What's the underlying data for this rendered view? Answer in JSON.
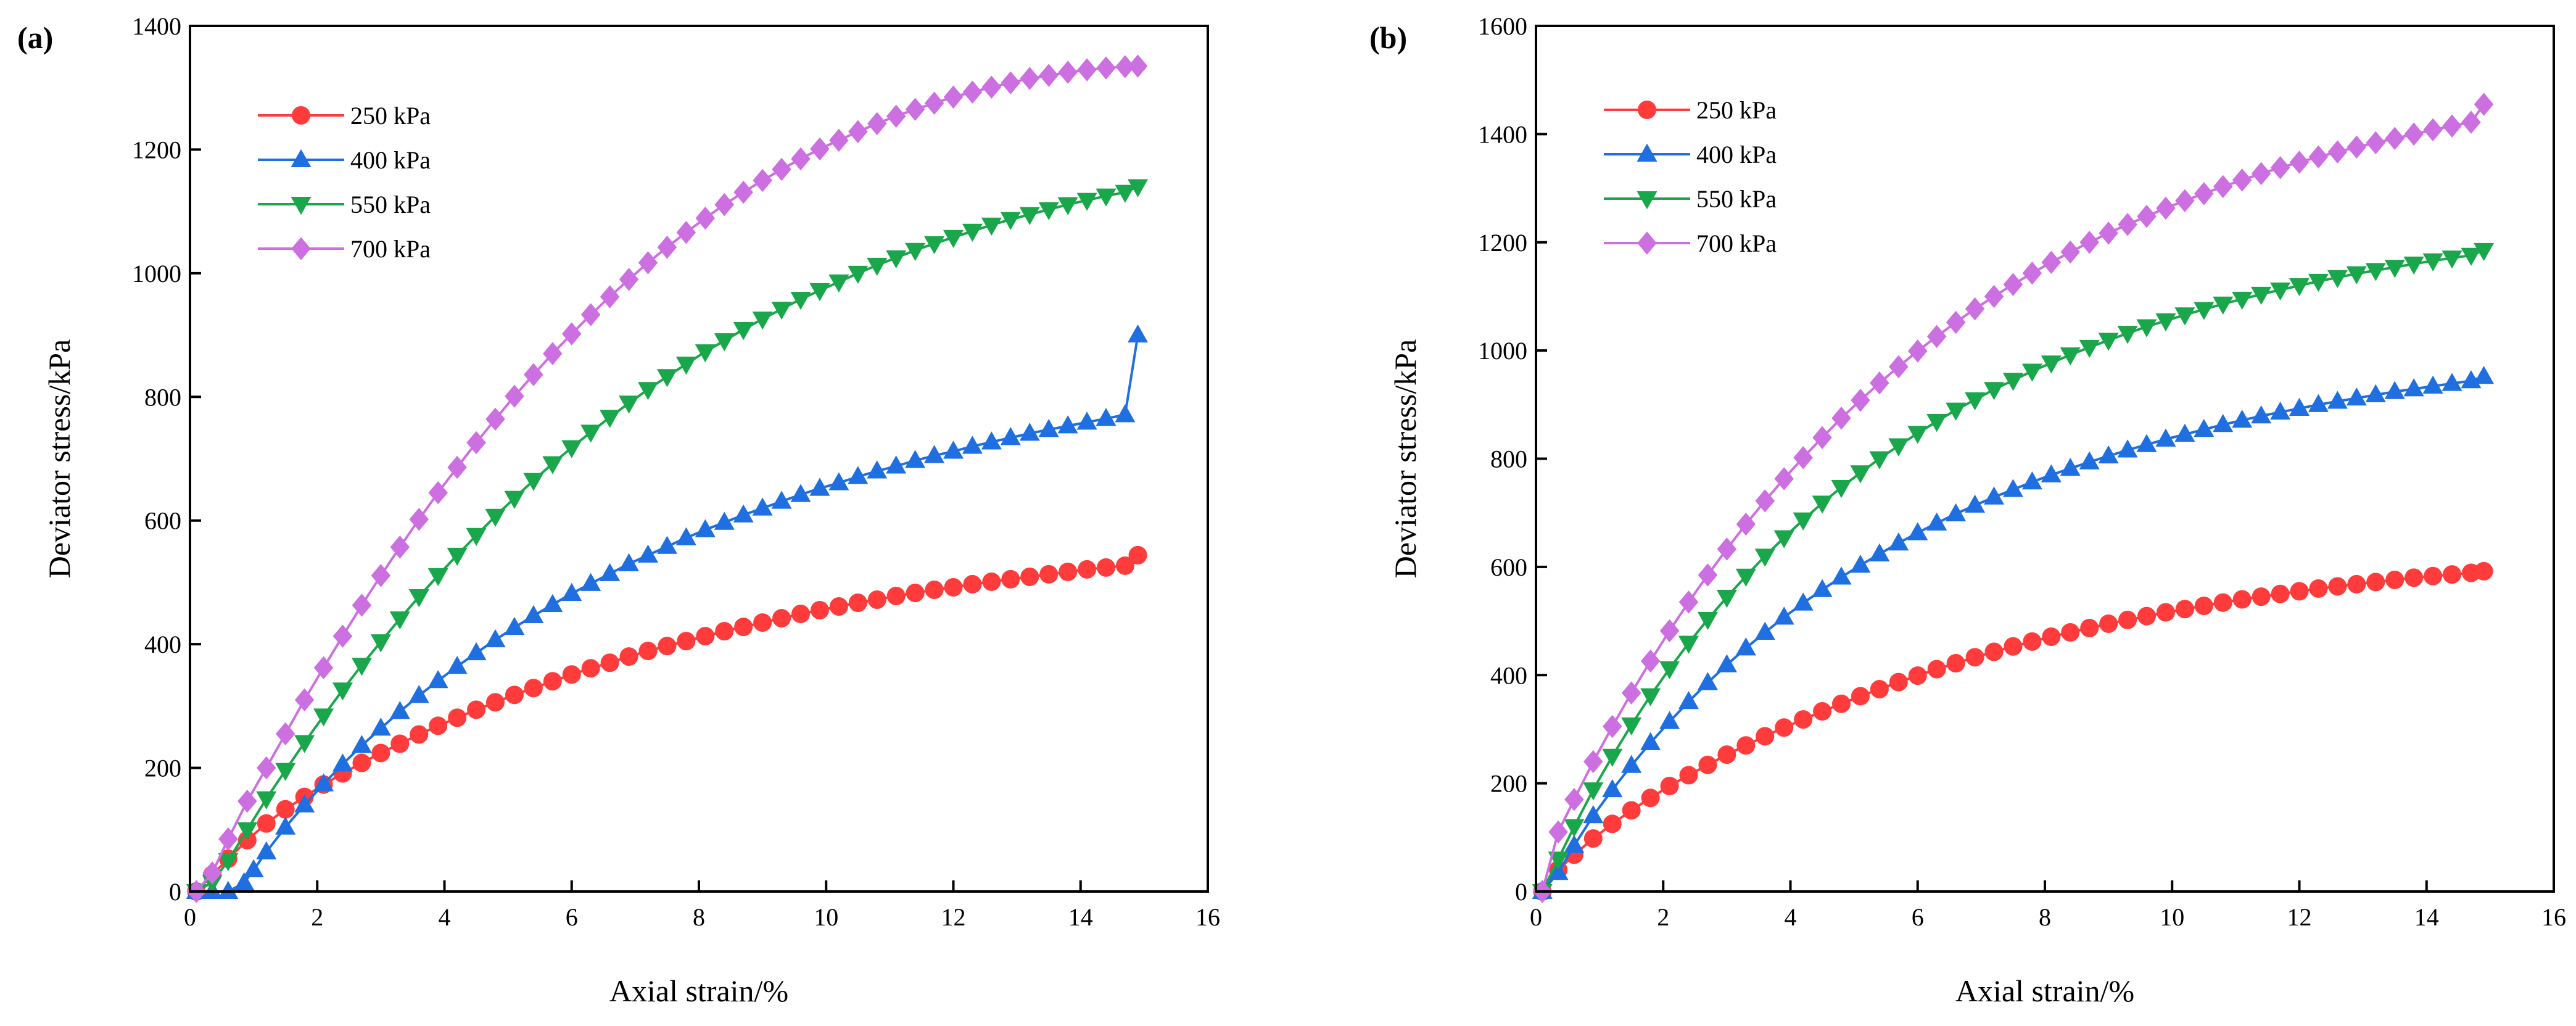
{
  "chart_data": [
    {
      "type": "line",
      "panel_label": "(a)",
      "xlabel": "Axial strain/%",
      "ylabel": "Deviator stress/kPa",
      "xlim": [
        0,
        16
      ],
      "ylim": [
        0,
        1400
      ],
      "xticks": [
        0,
        2,
        4,
        6,
        8,
        10,
        12,
        14,
        16
      ],
      "yticks": [
        0,
        200,
        400,
        600,
        800,
        1000,
        1200,
        1400
      ],
      "legend_position": "top-left",
      "series": [
        {
          "name": "250 kPa",
          "color": "#ff3b3b",
          "marker": "circle",
          "x": [
            0.1,
            0.35,
            0.6,
            0.9,
            1.2,
            1.5,
            1.8,
            2.1,
            2.4,
            2.7,
            3.0,
            3.3,
            3.6,
            3.9,
            4.2,
            4.5,
            4.8,
            5.1,
            5.4,
            5.7,
            6.0,
            6.3,
            6.6,
            6.9,
            7.2,
            7.5,
            7.8,
            8.1,
            8.4,
            8.7,
            9.0,
            9.3,
            9.6,
            9.9,
            10.2,
            10.5,
            10.8,
            11.1,
            11.4,
            11.7,
            12.0,
            12.3,
            12.6,
            12.9,
            13.2,
            13.5,
            13.8,
            14.1,
            14.4,
            14.7,
            14.9
          ],
          "y": [
            0,
            27,
            53,
            83,
            110,
            133,
            153,
            173,
            191,
            208,
            224,
            239,
            254,
            268,
            281,
            294,
            306,
            318,
            329,
            340,
            351,
            361,
            370,
            380,
            389,
            397,
            405,
            413,
            421,
            428,
            435,
            442,
            449,
            455,
            461,
            467,
            472,
            478,
            483,
            488,
            492,
            497,
            501,
            505,
            509,
            513,
            517,
            521,
            524,
            527,
            544
          ]
        },
        {
          "name": "400 kPa",
          "color": "#1f6fe0",
          "marker": "triangle-up",
          "x": [
            0.1,
            0.35,
            0.6,
            0.85,
            1.0,
            1.2,
            1.5,
            1.8,
            2.1,
            2.4,
            2.7,
            3.0,
            3.3,
            3.6,
            3.9,
            4.2,
            4.5,
            4.8,
            5.1,
            5.4,
            5.7,
            6.0,
            6.3,
            6.6,
            6.9,
            7.2,
            7.5,
            7.8,
            8.1,
            8.4,
            8.7,
            9.0,
            9.3,
            9.6,
            9.9,
            10.2,
            10.5,
            10.8,
            11.1,
            11.4,
            11.7,
            12.0,
            12.3,
            12.6,
            12.9,
            13.2,
            13.5,
            13.8,
            14.1,
            14.4,
            14.7,
            14.9
          ],
          "y": [
            0,
            0,
            0,
            14,
            35,
            64,
            104,
            140,
            174,
            206,
            236,
            264,
            291,
            317,
            341,
            364,
            386,
            407,
            427,
            446,
            464,
            482,
            498,
            514,
            530,
            544,
            558,
            572,
            585,
            597,
            609,
            620,
            631,
            642,
            652,
            661,
            671,
            680,
            688,
            697,
            705,
            712,
            720,
            727,
            734,
            741,
            747,
            753,
            759,
            765,
            771,
            900
          ]
        },
        {
          "name": "550 kPa",
          "color": "#1aa64a",
          "marker": "triangle-down",
          "x": [
            0.1,
            0.35,
            0.6,
            0.9,
            1.2,
            1.5,
            1.8,
            2.1,
            2.4,
            2.7,
            3.0,
            3.3,
            3.6,
            3.9,
            4.2,
            4.5,
            4.8,
            5.1,
            5.4,
            5.7,
            6.0,
            6.3,
            6.6,
            6.9,
            7.2,
            7.5,
            7.8,
            8.1,
            8.4,
            8.7,
            9.0,
            9.3,
            9.6,
            9.9,
            10.2,
            10.5,
            10.8,
            11.1,
            11.4,
            11.7,
            12.0,
            12.3,
            12.6,
            12.9,
            13.2,
            13.5,
            13.8,
            14.1,
            14.4,
            14.7,
            14.9
          ],
          "y": [
            0,
            15,
            50,
            100,
            150,
            196,
            241,
            284,
            326,
            366,
            404,
            441,
            477,
            511,
            544,
            576,
            607,
            636,
            665,
            692,
            718,
            743,
            767,
            790,
            812,
            833,
            853,
            873,
            891,
            909,
            926,
            942,
            958,
            972,
            986,
            1000,
            1013,
            1025,
            1037,
            1048,
            1058,
            1068,
            1078,
            1087,
            1095,
            1103,
            1111,
            1118,
            1125,
            1131,
            1140
          ]
        },
        {
          "name": "700 kPa",
          "color": "#cc6fe0",
          "marker": "diamond",
          "x": [
            0.1,
            0.35,
            0.6,
            0.9,
            1.2,
            1.5,
            1.8,
            2.1,
            2.4,
            2.7,
            3.0,
            3.3,
            3.6,
            3.9,
            4.2,
            4.5,
            4.8,
            5.1,
            5.4,
            5.7,
            6.0,
            6.3,
            6.6,
            6.9,
            7.2,
            7.5,
            7.8,
            8.1,
            8.4,
            8.7,
            9.0,
            9.3,
            9.6,
            9.9,
            10.2,
            10.5,
            10.8,
            11.1,
            11.4,
            11.7,
            12.0,
            12.3,
            12.6,
            12.9,
            13.2,
            13.5,
            13.8,
            14.1,
            14.4,
            14.7,
            14.9
          ],
          "y": [
            0,
            30,
            85,
            146,
            200,
            255,
            310,
            362,
            413,
            463,
            511,
            557,
            602,
            645,
            686,
            726,
            764,
            801,
            836,
            870,
            902,
            933,
            962,
            990,
            1017,
            1042,
            1066,
            1089,
            1111,
            1131,
            1150,
            1168,
            1185,
            1201,
            1215,
            1229,
            1242,
            1254,
            1265,
            1275,
            1285,
            1293,
            1301,
            1308,
            1315,
            1320,
            1325,
            1329,
            1332,
            1334,
            1335
          ]
        }
      ]
    },
    {
      "type": "line",
      "panel_label": "(b)",
      "xlabel": "Axial strain/%",
      "ylabel": "Deviator stress/kPa",
      "xlim": [
        0,
        16
      ],
      "ylim": [
        0,
        1600
      ],
      "xticks": [
        0,
        2,
        4,
        6,
        8,
        10,
        12,
        14,
        16
      ],
      "yticks": [
        0,
        200,
        400,
        600,
        800,
        1000,
        1200,
        1400,
        1600
      ],
      "legend_position": "top-left",
      "series": [
        {
          "name": "250 kPa",
          "color": "#ff3b3b",
          "marker": "circle",
          "x": [
            0.1,
            0.35,
            0.6,
            0.9,
            1.2,
            1.5,
            1.8,
            2.1,
            2.4,
            2.7,
            3.0,
            3.3,
            3.6,
            3.9,
            4.2,
            4.5,
            4.8,
            5.1,
            5.4,
            5.7,
            6.0,
            6.3,
            6.6,
            6.9,
            7.2,
            7.5,
            7.8,
            8.1,
            8.4,
            8.7,
            9.0,
            9.3,
            9.6,
            9.9,
            10.2,
            10.5,
            10.8,
            11.1,
            11.4,
            11.7,
            12.0,
            12.3,
            12.6,
            12.9,
            13.2,
            13.5,
            13.8,
            14.1,
            14.4,
            14.7,
            14.9
          ],
          "y": [
            0,
            40,
            68,
            98,
            125,
            150,
            173,
            195,
            215,
            234,
            253,
            270,
            287,
            303,
            318,
            333,
            347,
            361,
            374,
            387,
            399,
            411,
            422,
            433,
            443,
            453,
            462,
            471,
            479,
            487,
            495,
            502,
            509,
            516,
            522,
            528,
            534,
            540,
            545,
            550,
            555,
            560,
            564,
            568,
            572,
            576,
            580,
            583,
            586,
            589,
            592
          ]
        },
        {
          "name": "400 kPa",
          "color": "#1f6fe0",
          "marker": "triangle-up",
          "x": [
            0.1,
            0.35,
            0.6,
            0.9,
            1.2,
            1.5,
            1.8,
            2.1,
            2.4,
            2.7,
            3.0,
            3.3,
            3.6,
            3.9,
            4.2,
            4.5,
            4.8,
            5.1,
            5.4,
            5.7,
            6.0,
            6.3,
            6.6,
            6.9,
            7.2,
            7.5,
            7.8,
            8.1,
            8.4,
            8.7,
            9.0,
            9.3,
            9.6,
            9.9,
            10.2,
            10.5,
            10.8,
            11.1,
            11.4,
            11.7,
            12.0,
            12.3,
            12.6,
            12.9,
            13.2,
            13.5,
            13.8,
            14.1,
            14.4,
            14.7,
            14.9
          ],
          "y": [
            0,
            35,
            85,
            140,
            188,
            233,
            275,
            314,
            351,
            386,
            419,
            450,
            479,
            507,
            533,
            558,
            581,
            603,
            624,
            644,
            663,
            681,
            698,
            714,
            729,
            743,
            757,
            770,
            782,
            794,
            805,
            816,
            826,
            836,
            845,
            854,
            863,
            871,
            879,
            886,
            893,
            900,
            906,
            912,
            918,
            924,
            929,
            934,
            939,
            944,
            952
          ]
        },
        {
          "name": "550 kPa",
          "color": "#1aa64a",
          "marker": "triangle-down",
          "x": [
            0.1,
            0.35,
            0.6,
            0.9,
            1.2,
            1.5,
            1.8,
            2.1,
            2.4,
            2.7,
            3.0,
            3.3,
            3.6,
            3.9,
            4.2,
            4.5,
            4.8,
            5.1,
            5.4,
            5.7,
            6.0,
            6.3,
            6.6,
            6.9,
            7.2,
            7.5,
            7.8,
            8.1,
            8.4,
            8.7,
            9.0,
            9.3,
            9.6,
            9.9,
            10.2,
            10.5,
            10.8,
            11.1,
            11.4,
            11.7,
            12.0,
            12.3,
            12.6,
            12.9,
            13.2,
            13.5,
            13.8,
            14.1,
            14.4,
            14.7,
            14.9
          ],
          "y": [
            0,
            60,
            120,
            188,
            250,
            308,
            362,
            412,
            459,
            503,
            544,
            583,
            620,
            654,
            687,
            718,
            747,
            774,
            800,
            824,
            847,
            869,
            890,
            909,
            928,
            945,
            962,
            977,
            992,
            1006,
            1019,
            1032,
            1044,
            1055,
            1066,
            1076,
            1086,
            1095,
            1104,
            1112,
            1120,
            1128,
            1135,
            1142,
            1148,
            1154,
            1160,
            1166,
            1171,
            1176,
            1185
          ]
        },
        {
          "name": "700 kPa",
          "color": "#cc6fe0",
          "marker": "diamond",
          "x": [
            0.1,
            0.35,
            0.6,
            0.9,
            1.2,
            1.5,
            1.8,
            2.1,
            2.4,
            2.7,
            3.0,
            3.3,
            3.6,
            3.9,
            4.2,
            4.5,
            4.8,
            5.1,
            5.4,
            5.7,
            6.0,
            6.3,
            6.6,
            6.9,
            7.2,
            7.5,
            7.8,
            8.1,
            8.4,
            8.7,
            9.0,
            9.3,
            9.6,
            9.9,
            10.2,
            10.5,
            10.8,
            11.1,
            11.4,
            11.7,
            12.0,
            12.3,
            12.6,
            12.9,
            13.2,
            13.5,
            13.8,
            14.1,
            14.4,
            14.7,
            14.9
          ],
          "y": [
            0,
            110,
            170,
            240,
            305,
            367,
            426,
            482,
            535,
            585,
            633,
            679,
            722,
            763,
            802,
            839,
            875,
            908,
            940,
            970,
            999,
            1026,
            1052,
            1077,
            1100,
            1122,
            1143,
            1163,
            1182,
            1200,
            1217,
            1233,
            1248,
            1263,
            1277,
            1290,
            1303,
            1315,
            1327,
            1338,
            1348,
            1358,
            1367,
            1376,
            1384,
            1392,
            1400,
            1408,
            1415,
            1422,
            1455
          ]
        }
      ]
    }
  ]
}
